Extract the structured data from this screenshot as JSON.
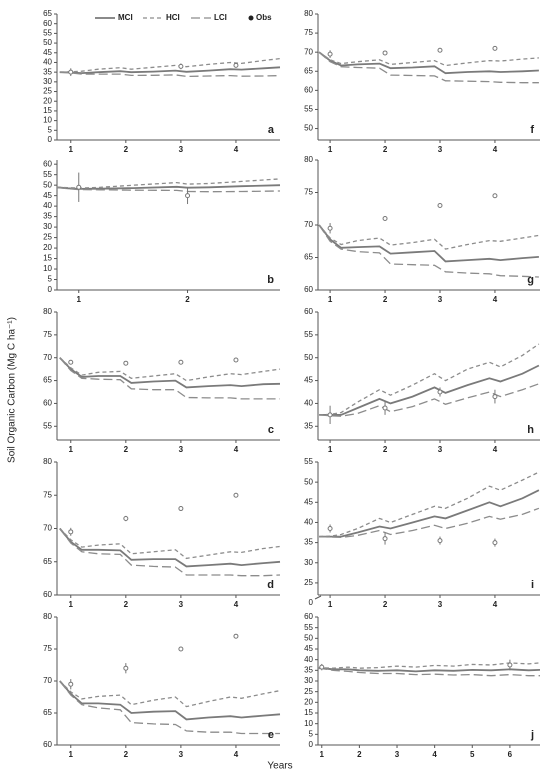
{
  "y_axis_label": "Soil Organic Carbon (Mg C ha⁻¹)",
  "x_axis_label": "Years",
  "chart_data": [
    {
      "type": "line",
      "panel_label": "a",
      "xlim": [
        0.75,
        4.8
      ],
      "xticks": [
        1,
        2,
        3,
        4
      ],
      "ylim": [
        0,
        65
      ],
      "yticks": [
        0,
        5,
        10,
        15,
        20,
        25,
        30,
        35,
        40,
        45,
        50,
        55,
        60,
        65
      ],
      "x": [
        0.8,
        1,
        1.2,
        1.5,
        1.9,
        2.1,
        2.5,
        2.9,
        3.1,
        3.5,
        3.9,
        4.1,
        4.5,
        4.8
      ],
      "series": [
        {
          "name": "MCI",
          "color": "#7a7a7a",
          "values": [
            35,
            34.8,
            34.5,
            35,
            35.5,
            35,
            35.3,
            35.8,
            35.2,
            35.8,
            36.5,
            36.3,
            37,
            37.5
          ]
        },
        {
          "name": "HCI",
          "color": "#8c8c8c",
          "values": [
            35,
            35.2,
            35.5,
            36.5,
            37.3,
            36.5,
            37.5,
            38.5,
            37.8,
            39,
            40,
            39.5,
            41,
            42
          ]
        },
        {
          "name": "LCI",
          "color": "#8c8c8c",
          "values": [
            35,
            34.6,
            34,
            34,
            34,
            33.3,
            33.4,
            33.6,
            32.8,
            33,
            33.2,
            32.9,
            33,
            33.2
          ]
        }
      ],
      "observed": {
        "name": "Obs",
        "x": [
          1,
          3,
          4
        ],
        "values": [
          35,
          38,
          38.5
        ],
        "errors": [
          2,
          1.5,
          1
        ]
      }
    },
    {
      "type": "line",
      "panel_label": "b",
      "xlim": [
        0.8,
        2.85
      ],
      "xticks": [
        1,
        2
      ],
      "ylim": [
        0,
        62
      ],
      "yticks": [
        0,
        5,
        10,
        15,
        20,
        25,
        30,
        35,
        40,
        45,
        50,
        55,
        60
      ],
      "x": [
        0.8,
        0.9,
        1,
        1.2,
        1.5,
        1.9,
        2,
        2.2,
        2.5,
        2.85
      ],
      "series": [
        {
          "color": "#7a7a7a",
          "values": [
            49,
            48.5,
            48.2,
            48.3,
            48.6,
            49.2,
            48.8,
            49,
            49.5,
            50
          ]
        },
        {
          "color": "#8c8c8c",
          "values": [
            49,
            48.8,
            48.6,
            49,
            50,
            51.2,
            50.5,
            50.8,
            51.8,
            53
          ]
        },
        {
          "color": "#8c8c8c",
          "values": [
            49,
            48.3,
            47.9,
            47.8,
            47.6,
            47.5,
            47,
            46.9,
            47,
            47.2
          ]
        }
      ],
      "observed": {
        "x": [
          1,
          2
        ],
        "values": [
          49,
          45
        ],
        "errors": [
          7,
          4
        ]
      }
    },
    {
      "type": "line",
      "panel_label": "c",
      "xlim": [
        0.75,
        4.8
      ],
      "xticks": [
        1,
        2,
        3,
        4
      ],
      "ylim": [
        52,
        80
      ],
      "yticks": [
        55,
        60,
        65,
        70,
        75,
        80
      ],
      "x": [
        0.8,
        1,
        1.2,
        1.5,
        1.9,
        2.1,
        2.5,
        2.9,
        3.1,
        3.5,
        3.9,
        4.1,
        4.5,
        4.8
      ],
      "series": [
        {
          "color": "#7a7a7a",
          "values": [
            70,
            67.5,
            65.8,
            66,
            66,
            64.5,
            64.8,
            65,
            63.5,
            63.8,
            64,
            63.8,
            64.2,
            64.3
          ]
        },
        {
          "color": "#8c8c8c",
          "values": [
            70,
            67.8,
            66.2,
            66.8,
            67,
            65.5,
            66,
            66.5,
            65,
            65.8,
            66.5,
            66.3,
            67,
            67.5
          ]
        },
        {
          "color": "#8c8c8c",
          "values": [
            70,
            67.2,
            65.5,
            65.3,
            65.2,
            63.2,
            63,
            63,
            61.3,
            61.2,
            61.2,
            61,
            61,
            61
          ]
        }
      ],
      "observed": {
        "x": [
          1,
          2,
          3,
          4
        ],
        "values": [
          69,
          68.8,
          69,
          69.5
        ],
        "errors": [
          0.3,
          0.3,
          0.3,
          0.3
        ]
      }
    },
    {
      "type": "line",
      "panel_label": "d",
      "xlim": [
        0.75,
        4.8
      ],
      "xticks": [
        1,
        2,
        3,
        4
      ],
      "ylim": [
        60,
        80
      ],
      "yticks": [
        60,
        65,
        70,
        75,
        80
      ],
      "x": [
        0.8,
        1,
        1.2,
        1.5,
        1.9,
        2.1,
        2.5,
        2.9,
        3.1,
        3.5,
        3.9,
        4.1,
        4.5,
        4.8
      ],
      "series": [
        {
          "color": "#7a7a7a",
          "values": [
            70,
            68,
            66.8,
            66.8,
            66.7,
            65.3,
            65.4,
            65.4,
            64.3,
            64.5,
            64.7,
            64.5,
            64.8,
            65
          ]
        },
        {
          "color": "#8c8c8c",
          "values": [
            70,
            68.3,
            67.2,
            67.5,
            67.7,
            66.2,
            66.5,
            66.8,
            65.5,
            66,
            66.5,
            66.4,
            67,
            67.3
          ]
        },
        {
          "color": "#8c8c8c",
          "values": [
            70,
            67.8,
            66.5,
            66.2,
            66.1,
            64.5,
            64.3,
            64.2,
            63,
            63,
            63,
            62.9,
            62.9,
            63
          ]
        }
      ],
      "observed": {
        "x": [
          1,
          2,
          3,
          4
        ],
        "values": [
          69.5,
          71.5,
          73,
          75
        ],
        "errors": [
          0.6,
          0.4,
          0.2,
          0.2
        ]
      }
    },
    {
      "type": "line",
      "panel_label": "e",
      "xlim": [
        0.75,
        4.8
      ],
      "xticks": [
        1,
        2,
        3,
        4
      ],
      "ylim": [
        60,
        80
      ],
      "yticks": [
        60,
        65,
        70,
        75,
        80
      ],
      "x": [
        0.8,
        1,
        1.2,
        1.5,
        1.9,
        2.1,
        2.5,
        2.9,
        3.1,
        3.5,
        3.9,
        4.1,
        4.5,
        4.8
      ],
      "series": [
        {
          "color": "#7a7a7a",
          "values": [
            70,
            68,
            66.5,
            66.5,
            66.3,
            65,
            65.2,
            65.3,
            64,
            64.3,
            64.5,
            64.3,
            64.6,
            64.8
          ]
        },
        {
          "color": "#8c8c8c",
          "values": [
            70,
            68.3,
            67.2,
            67.6,
            67.8,
            66.3,
            67,
            67.5,
            66,
            66.8,
            67.5,
            67.3,
            68,
            68.5
          ]
        },
        {
          "color": "#8c8c8c",
          "values": [
            70,
            67.8,
            66.3,
            65.8,
            65.5,
            63.5,
            63.3,
            63.2,
            62.2,
            62,
            62,
            61.8,
            61.8,
            61.8
          ]
        }
      ],
      "observed": {
        "x": [
          1,
          2,
          3,
          4
        ],
        "values": [
          69.5,
          72,
          75,
          77
        ],
        "errors": [
          0.8,
          0.8,
          0.3,
          0.3
        ]
      }
    },
    {
      "type": "line",
      "panel_label": "f",
      "xlim": [
        0.78,
        4.82
      ],
      "xticks": [
        1,
        2,
        3,
        4
      ],
      "ylim": [
        47,
        80
      ],
      "yticks": [
        50,
        55,
        60,
        65,
        70,
        75,
        80
      ],
      "x": [
        0.8,
        1,
        1.2,
        1.5,
        1.9,
        2.1,
        2.5,
        2.9,
        3.1,
        3.5,
        3.9,
        4.1,
        4.5,
        4.8
      ],
      "series": [
        {
          "color": "#7a7a7a",
          "values": [
            70,
            67.8,
            66.5,
            66.8,
            67,
            65.8,
            66,
            66.3,
            64.5,
            64.8,
            65,
            64.8,
            65,
            65.2
          ]
        },
        {
          "color": "#8c8c8c",
          "values": [
            70,
            68,
            67,
            67.5,
            68,
            66.8,
            67.3,
            67.8,
            66.5,
            67.2,
            67.8,
            67.7,
            68.2,
            68.5
          ]
        },
        {
          "color": "#8c8c8c",
          "values": [
            70,
            67.5,
            66.2,
            66,
            65.8,
            64,
            63.9,
            63.8,
            62.5,
            62.4,
            62.3,
            62.1,
            62,
            62
          ]
        }
      ],
      "observed": {
        "x": [
          1,
          2,
          3,
          4
        ],
        "values": [
          69.5,
          69.8,
          70.5,
          71
        ],
        "errors": [
          1,
          0.4,
          0.2,
          0.3
        ]
      }
    },
    {
      "type": "line",
      "panel_label": "g",
      "xlim": [
        0.78,
        4.82
      ],
      "xticks": [
        1,
        2,
        3,
        4
      ],
      "ylim": [
        60,
        80
      ],
      "yticks": [
        60,
        65,
        70,
        75,
        80
      ],
      "x": [
        0.8,
        1,
        1.2,
        1.5,
        1.9,
        2.1,
        2.5,
        2.9,
        3.1,
        3.5,
        3.9,
        4.1,
        4.5,
        4.8
      ],
      "series": [
        {
          "color": "#7a7a7a",
          "values": [
            70,
            67.8,
            66.5,
            66.6,
            66.7,
            65.6,
            65.8,
            66,
            64.4,
            64.6,
            64.8,
            64.6,
            64.9,
            65.1
          ]
        },
        {
          "color": "#8c8c8c",
          "values": [
            70,
            68,
            67,
            67.6,
            68,
            66.9,
            67.3,
            67.8,
            66.3,
            67,
            67.6,
            67.5,
            68,
            68.4
          ]
        },
        {
          "color": "#8c8c8c",
          "values": [
            70,
            67.5,
            66.3,
            65.9,
            65.7,
            64,
            63.9,
            63.8,
            62.8,
            62.6,
            62.5,
            62.2,
            62.1,
            62
          ]
        }
      ],
      "observed": {
        "x": [
          1,
          2,
          3,
          4
        ],
        "values": [
          69.5,
          71,
          73,
          74.5
        ],
        "errors": [
          0.8,
          0.3,
          0.2,
          0.3
        ]
      }
    },
    {
      "type": "line",
      "panel_label": "h",
      "xlim": [
        0.78,
        4.82
      ],
      "xticks": [
        1,
        2,
        3,
        4
      ],
      "ylim": [
        32,
        60
      ],
      "yticks": [
        35,
        40,
        45,
        50,
        55,
        60
      ],
      "x": [
        0.8,
        1,
        1.2,
        1.5,
        1.9,
        2.1,
        2.5,
        2.9,
        3.1,
        3.5,
        3.9,
        4.1,
        4.5,
        4.8
      ],
      "series": [
        {
          "color": "#7a7a7a",
          "values": [
            37.5,
            37.5,
            37.5,
            39,
            41,
            40,
            41.5,
            43.5,
            42.3,
            44,
            45.5,
            44.8,
            46.5,
            48.3
          ]
        },
        {
          "color": "#8c8c8c",
          "values": [
            37.5,
            37.6,
            38,
            40.3,
            43,
            41.8,
            44,
            46.5,
            45,
            47.5,
            49,
            48,
            50.5,
            53
          ]
        },
        {
          "color": "#8c8c8c",
          "values": [
            37.5,
            37.3,
            37.2,
            37.8,
            39.5,
            38.2,
            39.3,
            41,
            39.8,
            41.2,
            42.5,
            41.5,
            43,
            44.3
          ]
        }
      ],
      "observed": {
        "x": [
          1,
          2,
          3,
          4
        ],
        "values": [
          37.5,
          39,
          42.5,
          41.5
        ],
        "errors": [
          2,
          1.5,
          1,
          1.5
        ]
      }
    },
    {
      "type": "line",
      "panel_label": "i",
      "xlim": [
        0.78,
        4.82
      ],
      "xticks": [
        1,
        2,
        3,
        4
      ],
      "ylim": [
        22,
        55
      ],
      "yticks": [
        25,
        30,
        35,
        40,
        45,
        50,
        55
      ],
      "ybreak_label": "0",
      "x": [
        0.8,
        1,
        1.2,
        1.5,
        1.9,
        2.1,
        2.5,
        2.9,
        3.1,
        3.5,
        3.9,
        4.1,
        4.5,
        4.8
      ],
      "series": [
        {
          "color": "#7a7a7a",
          "values": [
            36.5,
            36.5,
            36.5,
            37.5,
            39,
            38.5,
            40,
            41.5,
            41,
            43,
            45,
            44,
            46,
            48
          ]
        },
        {
          "color": "#8c8c8c",
          "values": [
            36.5,
            36.6,
            37,
            38.5,
            41,
            40,
            42,
            44,
            43.5,
            46,
            49,
            48,
            50.5,
            52.5
          ]
        },
        {
          "color": "#8c8c8c",
          "values": [
            36.5,
            36.4,
            36.3,
            36.8,
            38,
            37,
            38,
            39.3,
            38.5,
            39.8,
            41.5,
            40.8,
            42,
            43.5
          ]
        }
      ],
      "observed": {
        "x": [
          1,
          2,
          3,
          4
        ],
        "values": [
          38.5,
          36,
          35.5,
          35
        ],
        "errors": [
          1,
          1.5,
          1,
          1
        ]
      }
    },
    {
      "type": "line",
      "panel_label": "j",
      "xlim": [
        0.9,
        6.8
      ],
      "xticks": [
        1,
        2,
        3,
        4,
        5,
        6
      ],
      "ylim": [
        0,
        60
      ],
      "yticks": [
        0,
        5,
        10,
        15,
        20,
        25,
        30,
        35,
        40,
        45,
        50,
        55,
        60
      ],
      "x": [
        0.9,
        1,
        1.3,
        1.7,
        2,
        2.5,
        3,
        3.5,
        4,
        4.5,
        5,
        5.5,
        6,
        6.5,
        6.8
      ],
      "series": [
        {
          "color": "#7a7a7a",
          "values": [
            36,
            36,
            35.5,
            35.5,
            35,
            34.8,
            35,
            34.5,
            35,
            34.8,
            35.2,
            35,
            35.5,
            35,
            35.2
          ]
        },
        {
          "color": "#8c8c8c",
          "values": [
            36,
            36.2,
            36,
            36.5,
            36,
            36.3,
            37,
            36.5,
            37.3,
            37,
            37.8,
            37.5,
            38.5,
            38,
            38.5
          ]
        },
        {
          "color": "#8c8c8c",
          "values": [
            36,
            35.8,
            35,
            34.5,
            34,
            33.5,
            33.5,
            33,
            33.2,
            32.8,
            33,
            32.5,
            33,
            32.5,
            32.5
          ]
        }
      ],
      "observed": {
        "x": [
          1,
          6
        ],
        "values": [
          36.5,
          37.5
        ],
        "errors": [
          1.5,
          2.5
        ]
      }
    }
  ]
}
